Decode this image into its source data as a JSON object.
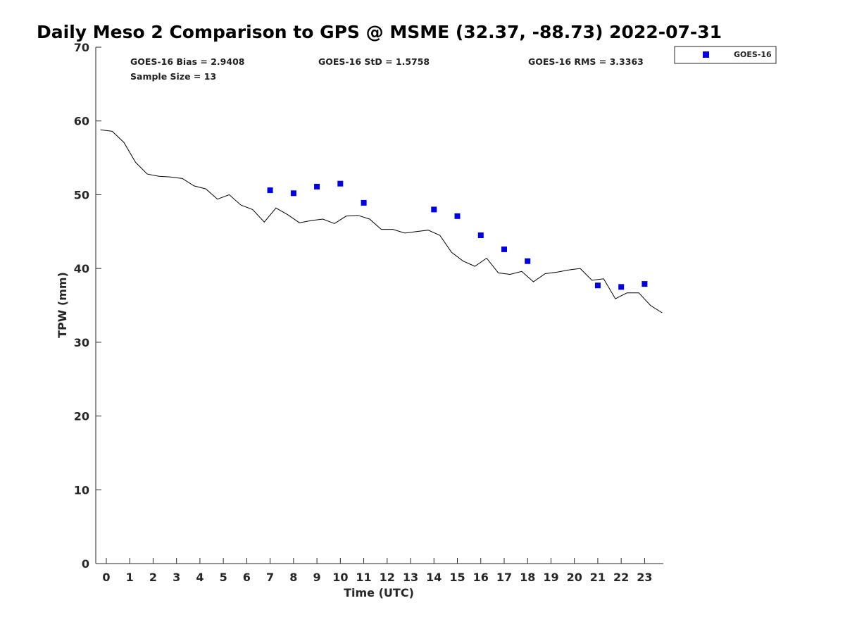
{
  "chart_data": {
    "type": "scatter",
    "title": "Daily Meso 2 Comparison to GPS @ MSME (32.37, -88.73) 2022-07-31",
    "xlabel": "Time (UTC)",
    "ylabel": "TPW (mm)",
    "xlim": [
      -0.45,
      23.8
    ],
    "ylim": [
      0,
      70
    ],
    "xticks": [
      0,
      1,
      2,
      3,
      4,
      5,
      6,
      7,
      8,
      9,
      10,
      11,
      12,
      13,
      14,
      15,
      16,
      17,
      18,
      19,
      20,
      21,
      22,
      23
    ],
    "xtick_labels": [
      "0",
      "1",
      "2",
      "3",
      "4",
      "5",
      "6",
      "7",
      "8",
      "9",
      "10",
      "11",
      "12",
      "13",
      "14",
      "15",
      "16",
      "17",
      "18",
      "19",
      "20",
      "21",
      "22",
      "23"
    ],
    "yticks": [
      0,
      10,
      20,
      30,
      40,
      50,
      60,
      70
    ],
    "ytick_labels": [
      "0",
      "10",
      "20",
      "30",
      "40",
      "50",
      "60",
      "70"
    ],
    "stats": {
      "bias": "GOES-16 Bias = 2.9408",
      "std": "GOES-16 StD = 1.5758",
      "rms": "GOES-16 RMS = 3.3363",
      "sample": "Sample Size = 13"
    },
    "legend": {
      "position": "top-right",
      "entries": [
        {
          "label": "GOES-16",
          "color": "#0000dd",
          "marker": "square"
        }
      ]
    },
    "series": [
      {
        "name": "GPS",
        "kind": "line",
        "color": "#000000",
        "x": [
          -0.25,
          0.25,
          0.75,
          1.25,
          1.75,
          2.25,
          2.75,
          3.25,
          3.75,
          4.25,
          4.75,
          5.25,
          5.75,
          6.25,
          6.75,
          7.25,
          7.75,
          8.25,
          8.75,
          9.25,
          9.75,
          10.25,
          10.75,
          11.25,
          11.75,
          12.25,
          12.75,
          13.25,
          13.75,
          14.25,
          14.75,
          15.25,
          15.75,
          16.25,
          16.75,
          17.25,
          17.75,
          18.25,
          18.75,
          19.25,
          19.75,
          20.25,
          20.75,
          21.25,
          21.75,
          22.25,
          22.75,
          23.25,
          23.75
        ],
        "y": [
          58.8,
          58.6,
          57.1,
          54.4,
          52.8,
          52.5,
          52.4,
          52.2,
          51.2,
          50.8,
          49.4,
          50.0,
          48.6,
          48.0,
          46.3,
          48.2,
          47.3,
          46.2,
          46.5,
          46.7,
          46.1,
          47.1,
          47.2,
          46.7,
          45.3,
          45.3,
          44.8,
          45.0,
          45.2,
          44.5,
          42.2,
          41.0,
          40.3,
          41.4,
          39.4,
          39.2,
          39.6,
          38.2,
          39.3,
          39.5,
          39.8,
          40.0,
          38.4,
          38.6,
          35.9,
          36.7,
          36.7,
          35.0,
          34.0
        ]
      },
      {
        "name": "GOES-16",
        "kind": "scatter",
        "color": "#0000dd",
        "x": [
          7,
          8,
          9,
          10,
          11,
          14,
          15,
          16,
          17,
          18,
          21,
          22,
          23
        ],
        "y": [
          50.6,
          50.2,
          51.1,
          51.5,
          48.9,
          48.0,
          47.1,
          44.5,
          42.6,
          41.0,
          37.7,
          37.5,
          37.9
        ]
      }
    ]
  }
}
